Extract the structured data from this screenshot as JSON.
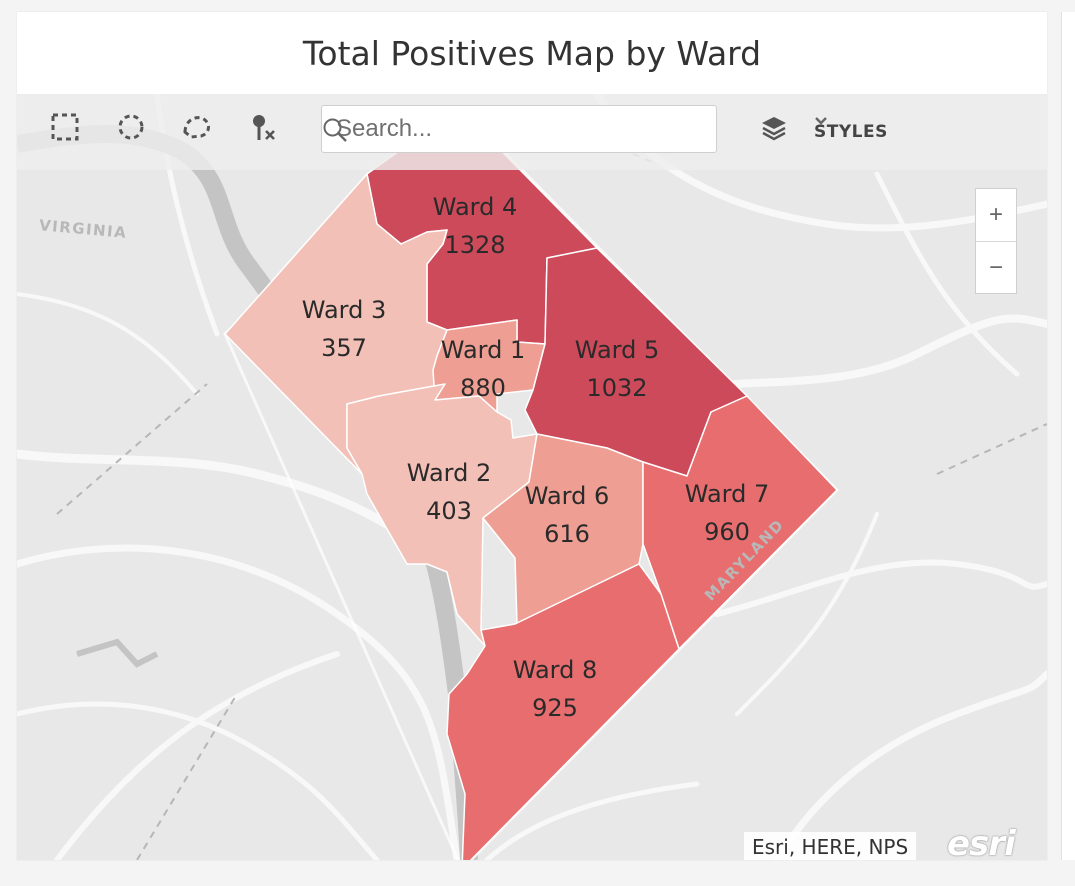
{
  "title": "Total Positives Map by Ward",
  "toolbar": {
    "search_placeholder": "Search...",
    "styles_label": "STYLES",
    "tools": [
      "select-rectangle-icon",
      "select-circle-icon",
      "select-lasso-icon",
      "clear-pin-icon"
    ]
  },
  "zoom": {
    "in_label": "+",
    "out_label": "−"
  },
  "colors": {
    "low": "#f2c0b6",
    "mid_low": "#ee9e92",
    "mid": "#e86d6e",
    "high": "#cc4a5a",
    "map_bg": "#e8e8e8"
  },
  "basemap_labels": {
    "virginia": "VIRGINIA",
    "maryland": "MARYLAND"
  },
  "wards": [
    {
      "name": "Ward 4",
      "value": "1328"
    },
    {
      "name": "Ward 3",
      "value": "357"
    },
    {
      "name": "Ward 1",
      "value": "880"
    },
    {
      "name": "Ward 5",
      "value": "1032"
    },
    {
      "name": "Ward 2",
      "value": "403"
    },
    {
      "name": "Ward 6",
      "value": "616"
    },
    {
      "name": "Ward 7",
      "value": "960"
    },
    {
      "name": "Ward 8",
      "value": "925"
    }
  ],
  "attribution": "Esri, HERE, NPS",
  "esri_logo": "esri"
}
